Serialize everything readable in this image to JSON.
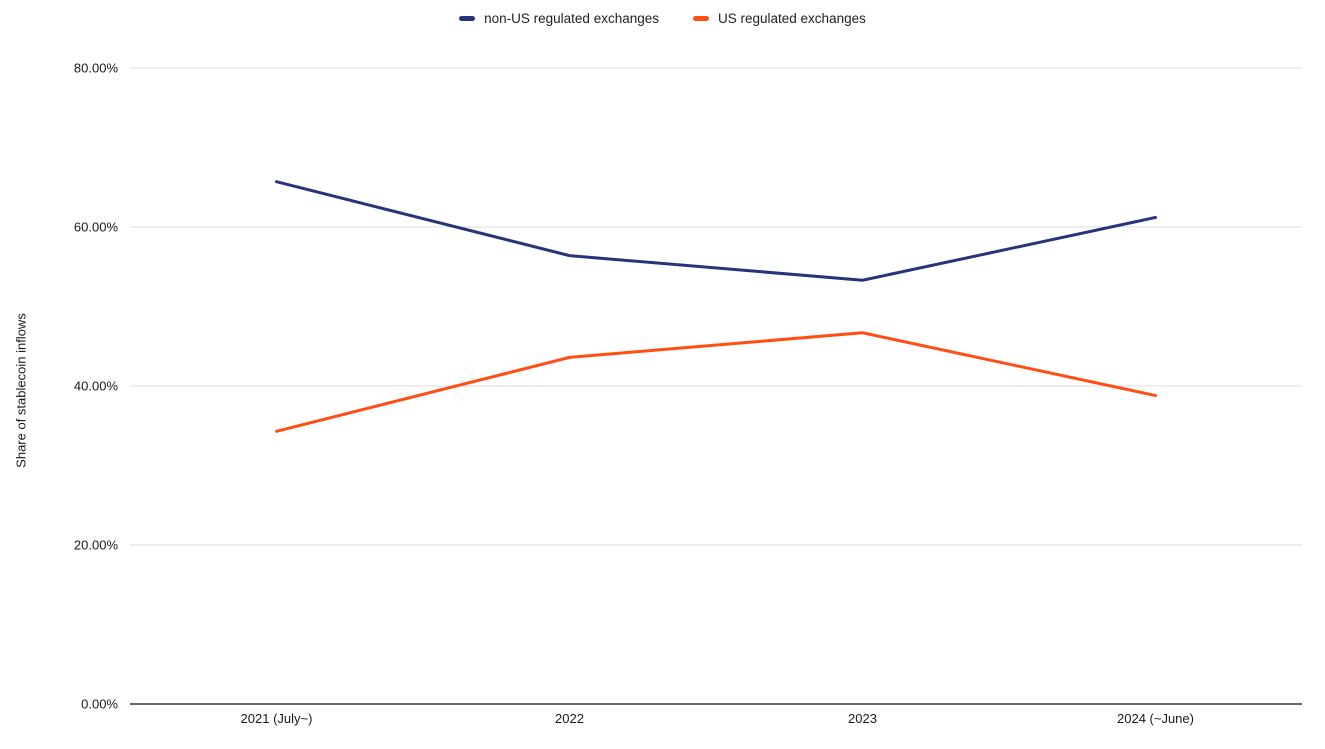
{
  "page": {
    "background": "#ffffff"
  },
  "chart_data": {
    "type": "line",
    "title": "",
    "xlabel": "",
    "ylabel": "Share of stablecoin inflows",
    "categories": [
      "2021 (July~)",
      "2022",
      "2023",
      "2024 (~June)"
    ],
    "series": [
      {
        "name": "non-US regulated exchanges",
        "color": "#27337B",
        "values": [
          65.7,
          56.4,
          53.3,
          61.2
        ]
      },
      {
        "name": "US regulated exchanges",
        "color": "#FF4E14",
        "values": [
          34.3,
          43.6,
          46.7,
          38.8
        ]
      }
    ],
    "ylim": [
      0,
      80
    ],
    "yticks": {
      "values": [
        0,
        20,
        40,
        60,
        80
      ],
      "labels": [
        "0.00%",
        "20.00%",
        "40.00%",
        "60.00%",
        "80.00%"
      ]
    },
    "grid": true,
    "legend_position": "top-center",
    "colors": {
      "gridline": "#dcdcdc",
      "axis_line": "#333333",
      "tick_text": "#1a1a1a"
    }
  }
}
